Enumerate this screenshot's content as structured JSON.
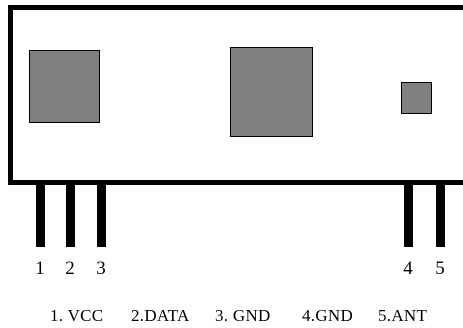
{
  "pins": [
    {
      "number": "1",
      "label": "1. VCC"
    },
    {
      "number": "2",
      "label": "2.DATA"
    },
    {
      "number": "3",
      "label": "3. GND"
    },
    {
      "number": "4",
      "label": "4.GND"
    },
    {
      "number": "5",
      "label": "5.ANT"
    }
  ],
  "colors": {
    "outline": "#000000",
    "component_fill": "#7f7f7f",
    "background": "#ffffff"
  }
}
